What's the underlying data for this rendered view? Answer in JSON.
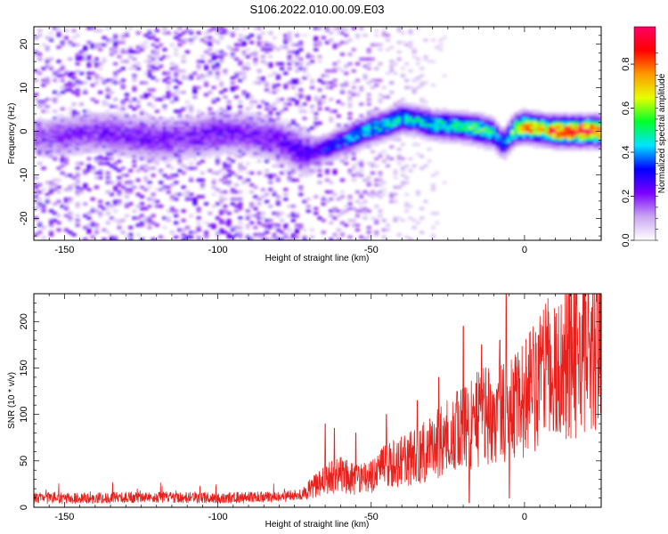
{
  "figure_title": "S106.2022.010.00.09.E03",
  "chart_data": [
    {
      "type": "heatmap",
      "title": "",
      "xlabel": "Height of straight line (km)",
      "ylabel": "Frequency (Hz)",
      "xlim": [
        -160,
        25
      ],
      "ylim": [
        -25,
        24
      ],
      "x_ticks": [
        -150,
        -100,
        -50,
        0
      ],
      "y_ticks": [
        -20,
        -10,
        0,
        10,
        20
      ],
      "colorbar": {
        "label": "Normalized spectral amplitude",
        "range": [
          0,
          0.97
        ],
        "ticks": [
          0.0,
          0.2,
          0.4,
          0.6,
          0.8
        ],
        "colormap": "rainbow",
        "colors": [
          "#ffffff",
          "#c9a6f2",
          "#7a00ff",
          "#0000ff",
          "#00e5ff",
          "#00ff2a",
          "#e6ff00",
          "#ff9900",
          "#ff0000",
          "#ff0066"
        ]
      },
      "ridge": [
        {
          "x": -160,
          "f": -1.5,
          "amp": 0.15
        },
        {
          "x": -150,
          "f": -1.0,
          "amp": 0.18
        },
        {
          "x": -140,
          "f": 0.0,
          "amp": 0.2
        },
        {
          "x": -130,
          "f": -1.0,
          "amp": 0.2
        },
        {
          "x": -120,
          "f": -2.0,
          "amp": 0.22
        },
        {
          "x": -110,
          "f": -1.5,
          "amp": 0.2
        },
        {
          "x": -100,
          "f": -0.5,
          "amp": 0.22
        },
        {
          "x": -90,
          "f": -0.5,
          "amp": 0.2
        },
        {
          "x": -80,
          "f": -2.0,
          "amp": 0.22
        },
        {
          "x": -72,
          "f": -5.0,
          "amp": 0.25
        },
        {
          "x": -65,
          "f": -4.0,
          "amp": 0.3
        },
        {
          "x": -60,
          "f": -2.5,
          "amp": 0.35
        },
        {
          "x": -55,
          "f": -1.0,
          "amp": 0.4
        },
        {
          "x": -50,
          "f": 0.5,
          "amp": 0.42
        },
        {
          "x": -45,
          "f": 1.5,
          "amp": 0.45
        },
        {
          "x": -40,
          "f": 3.0,
          "amp": 0.45
        },
        {
          "x": -35,
          "f": 2.5,
          "amp": 0.42
        },
        {
          "x": -30,
          "f": 1.5,
          "amp": 0.45
        },
        {
          "x": -20,
          "f": 1.0,
          "amp": 0.48
        },
        {
          "x": -15,
          "f": 0.5,
          "amp": 0.55
        },
        {
          "x": -10,
          "f": -0.5,
          "amp": 0.45
        },
        {
          "x": -7,
          "f": -3.0,
          "amp": 0.35
        },
        {
          "x": -3,
          "f": 0.5,
          "amp": 0.6
        },
        {
          "x": 0,
          "f": 1.0,
          "amp": 0.8
        },
        {
          "x": 5,
          "f": 0.5,
          "amp": 0.65
        },
        {
          "x": 10,
          "f": 0.0,
          "amp": 0.85
        },
        {
          "x": 20,
          "f": 0.0,
          "amp": 0.9
        },
        {
          "x": 23,
          "f": 0.0,
          "amp": 0.85
        }
      ]
    },
    {
      "type": "line",
      "title": "",
      "xlabel": "Height of straight line (km)",
      "ylabel": "SNR (10 * v/v)",
      "xlim": [
        -160,
        25
      ],
      "ylim": [
        0,
        230
      ],
      "x_ticks": [
        -150,
        -100,
        -50,
        0
      ],
      "y_ticks": [
        0,
        50,
        100,
        150,
        200
      ],
      "color": "#e8201c",
      "series": [
        {
          "trend_x": [
            -160,
            -140,
            -120,
            -100,
            -80,
            -72,
            -70,
            -65,
            -60,
            -55,
            -50,
            -45,
            -40,
            -35,
            -30,
            -25,
            -20,
            -15,
            -10,
            -5,
            0,
            5,
            10,
            15,
            20,
            25
          ],
          "trend_y": [
            10,
            10,
            11,
            10,
            11,
            14,
            20,
            30,
            35,
            30,
            32,
            45,
            50,
            55,
            65,
            75,
            85,
            95,
            100,
            105,
            120,
            140,
            150,
            160,
            175,
            190
          ],
          "spikes": [
            {
              "x": -65,
              "y": 90
            },
            {
              "x": -62,
              "y": 85
            },
            {
              "x": -55,
              "y": 80
            },
            {
              "x": -45,
              "y": 100
            },
            {
              "x": -35,
              "y": 115
            },
            {
              "x": -28,
              "y": 140
            },
            {
              "x": -22,
              "y": 125
            },
            {
              "x": -20,
              "y": 195
            },
            {
              "x": -18,
              "y": 5
            },
            {
              "x": -14,
              "y": 175
            },
            {
              "x": -8,
              "y": 180
            },
            {
              "x": -6,
              "y": 230
            },
            {
              "x": -5,
              "y": 10
            },
            {
              "x": 3,
              "y": 175
            },
            {
              "x": 8,
              "y": 180
            },
            {
              "x": 15,
              "y": 200
            },
            {
              "x": 22,
              "y": 215
            }
          ]
        }
      ]
    }
  ]
}
